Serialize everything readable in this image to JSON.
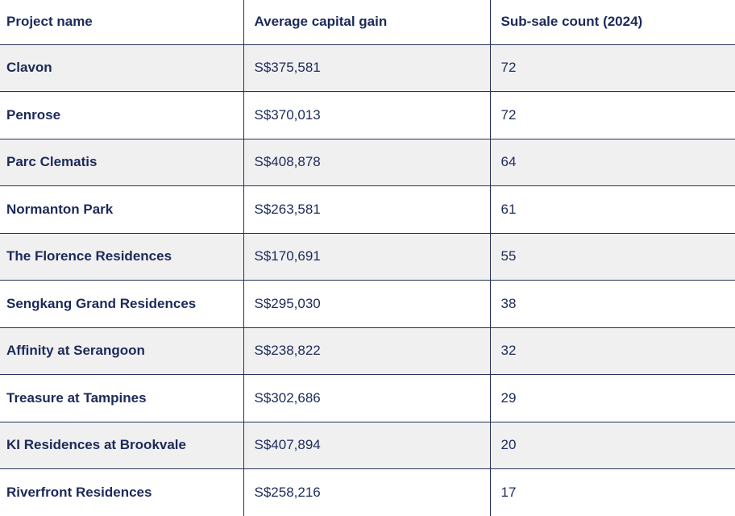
{
  "colors": {
    "text": "#1c2a5a",
    "border": "#253159",
    "stripe": "#f0f0f1",
    "background": "#ffffff"
  },
  "chart_data": {
    "type": "table",
    "columns": [
      "Project name",
      "Average capital gain",
      "Sub-sale count (2024)"
    ],
    "rows": [
      {
        "project": "Clavon",
        "avg_capital_gain": "S$375,581",
        "sub_sale_count_2024": "72"
      },
      {
        "project": "Penrose",
        "avg_capital_gain": "S$370,013",
        "sub_sale_count_2024": "72"
      },
      {
        "project": "Parc Clematis",
        "avg_capital_gain": "S$408,878",
        "sub_sale_count_2024": "64"
      },
      {
        "project": "Normanton Park",
        "avg_capital_gain": "S$263,581",
        "sub_sale_count_2024": "61"
      },
      {
        "project": "The Florence Residences",
        "avg_capital_gain": "S$170,691",
        "sub_sale_count_2024": "55"
      },
      {
        "project": "Sengkang Grand Residences",
        "avg_capital_gain": "S$295,030",
        "sub_sale_count_2024": "38"
      },
      {
        "project": "Affinity at Serangoon",
        "avg_capital_gain": "S$238,822",
        "sub_sale_count_2024": "32"
      },
      {
        "project": "Treasure at Tampines",
        "avg_capital_gain": "S$302,686",
        "sub_sale_count_2024": "29"
      },
      {
        "project": "KI Residences at Brookvale",
        "avg_capital_gain": "S$407,894",
        "sub_sale_count_2024": "20"
      },
      {
        "project": "Riverfront Residences",
        "avg_capital_gain": "S$258,216",
        "sub_sale_count_2024": "17"
      }
    ]
  }
}
